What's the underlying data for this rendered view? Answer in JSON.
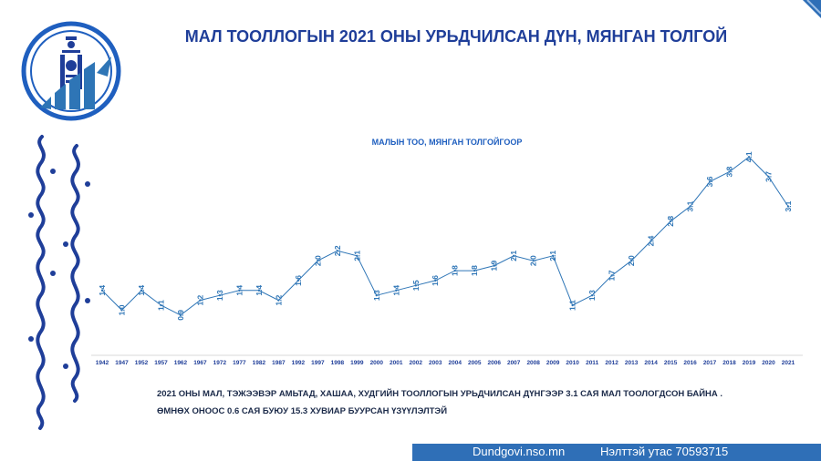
{
  "header": {
    "title": "МАЛ ТООЛЛОГЫН 2021 ОНЫ УРЬДЧИЛСАН ДҮН, МЯНГАН ТОЛГОЙ"
  },
  "colors": {
    "brand_blue": "#1f3e99",
    "line_blue": "#2e75b6",
    "footer_blue": "#2f6fb7"
  },
  "chart_data": {
    "type": "line",
    "title": "МАЛЫН ТОО, МЯНГАН ТОЛГОЙГООР",
    "xlabel": "",
    "ylabel": "",
    "grid": false,
    "categories": [
      "1942",
      "1947",
      "1952",
      "1957",
      "1962",
      "1967",
      "1972",
      "1977",
      "1982",
      "1987",
      "1992",
      "1997",
      "1998",
      "1999",
      "2000",
      "2001",
      "2002",
      "2003",
      "2004",
      "2005",
      "2006",
      "2007",
      "2008",
      "2009",
      "2010",
      "2011",
      "2012",
      "2013",
      "2014",
      "2015",
      "2016",
      "2017",
      "2018",
      "2019",
      "2020",
      "2021"
    ],
    "values": [
      1.4,
      1.0,
      1.4,
      1.1,
      0.9,
      1.2,
      1.3,
      1.4,
      1.4,
      1.2,
      1.6,
      2.0,
      2.2,
      2.1,
      1.3,
      1.4,
      1.5,
      1.6,
      1.8,
      1.8,
      1.9,
      2.1,
      2.0,
      2.1,
      1.1,
      1.3,
      1.7,
      2.0,
      2.4,
      2.8,
      3.1,
      3.6,
      3.8,
      4.1,
      3.7,
      3.1
    ],
    "ylim": [
      0.4,
      4.4
    ]
  },
  "notes": {
    "line1": "2021 ОНЫ МАЛ, ТЭЖЭЭВЭР АМЬТАД, ХАШАА, ХУДГИЙН ТООЛЛОГЫН УРЬДЧИЛСАН ДҮНГЭЭР 3.1 САЯ МАЛ ТООЛОГДСОН БАЙНА .",
    "line2": "ӨМНӨХ ОНООС 0.6 САЯ БУЮУ 15.3 ХУВИАР БУУРСАН ҮЗҮҮЛЭЛТЭЙ"
  },
  "footer": {
    "website": "Dundgovi.nso.mn",
    "phone": "Нэлттэй утас 70593715"
  }
}
